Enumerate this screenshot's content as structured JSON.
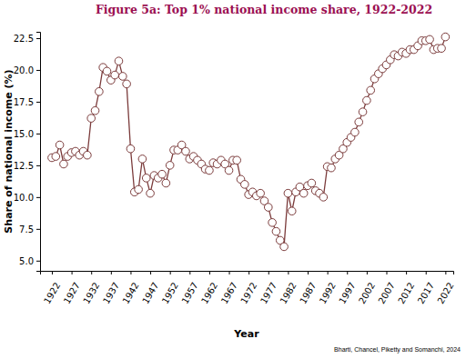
{
  "chart_data": {
    "type": "line",
    "title": "Figure 5a: Top 1% national income share, 1922-2022",
    "x_label": "Year",
    "y_label": "Share of national income (%)",
    "source": "Bharti, Chancel, Piketty and Somanchi, 2024",
    "color": "#7b3b3b",
    "marker": "circle",
    "line_style": "solid",
    "grid": false,
    "x": [
      1922,
      1923,
      1924,
      1925,
      1926,
      1927,
      1928,
      1929,
      1930,
      1931,
      1932,
      1933,
      1934,
      1935,
      1936,
      1937,
      1938,
      1939,
      1940,
      1941,
      1942,
      1943,
      1944,
      1945,
      1946,
      1947,
      1948,
      1949,
      1950,
      1951,
      1952,
      1953,
      1954,
      1955,
      1956,
      1957,
      1958,
      1959,
      1960,
      1961,
      1962,
      1963,
      1964,
      1965,
      1966,
      1967,
      1968,
      1969,
      1970,
      1971,
      1972,
      1973,
      1974,
      1975,
      1976,
      1977,
      1978,
      1979,
      1980,
      1981,
      1982,
      1983,
      1984,
      1985,
      1986,
      1987,
      1988,
      1989,
      1990,
      1991,
      1992,
      1993,
      1994,
      1995,
      1996,
      1997,
      1998,
      1999,
      2000,
      2001,
      2002,
      2003,
      2004,
      2005,
      2006,
      2007,
      2008,
      2009,
      2010,
      2011,
      2012,
      2013,
      2014,
      2015,
      2016,
      2017,
      2018,
      2019,
      2020,
      2021,
      2022
    ],
    "values": [
      13.1,
      13.2,
      14.1,
      12.6,
      13.2,
      13.5,
      13.6,
      13.3,
      13.6,
      13.3,
      16.2,
      16.8,
      18.3,
      20.2,
      19.9,
      19.2,
      19.6,
      20.7,
      19.5,
      18.9,
      13.8,
      10.4,
      10.6,
      13.0,
      11.5,
      10.3,
      11.7,
      11.5,
      11.8,
      11.1,
      12.5,
      13.7,
      13.7,
      14.1,
      13.6,
      13.0,
      13.2,
      12.9,
      12.6,
      12.2,
      12.1,
      12.7,
      12.6,
      12.9,
      12.6,
      12.1,
      12.9,
      12.9,
      11.4,
      11.0,
      10.2,
      10.4,
      10.1,
      10.3,
      9.7,
      9.2,
      8.0,
      7.3,
      6.6,
      6.1,
      10.3,
      8.9,
      10.4,
      10.8,
      10.3,
      10.9,
      11.1,
      10.5,
      10.3,
      10.0,
      12.4,
      12.3,
      13.0,
      13.3,
      13.8,
      14.3,
      14.7,
      15.1,
      15.9,
      16.7,
      17.6,
      18.4,
      19.3,
      19.7,
      20.1,
      20.4,
      20.8,
      21.2,
      21.1,
      21.4,
      21.3,
      21.6,
      21.6,
      21.9,
      22.3,
      22.3,
      22.4,
      21.6,
      21.7,
      21.7,
      22.6
    ],
    "xlim": [
      1919,
      2024
    ],
    "xticks": [
      1922,
      1927,
      1932,
      1937,
      1942,
      1947,
      1952,
      1957,
      1962,
      1967,
      1972,
      1977,
      1982,
      1987,
      1992,
      1997,
      2002,
      2007,
      2012,
      2017,
      2022
    ],
    "ylim": [
      4.2,
      23.0
    ],
    "yticks": [
      {
        "value": 5,
        "label": "5.0"
      },
      7.5,
      {
        "value": 10,
        "label": "10.0"
      },
      12.5,
      {
        "value": 15,
        "label": "15.0"
      },
      17.5,
      {
        "value": 20,
        "label": "20.0"
      },
      22.5
    ]
  }
}
